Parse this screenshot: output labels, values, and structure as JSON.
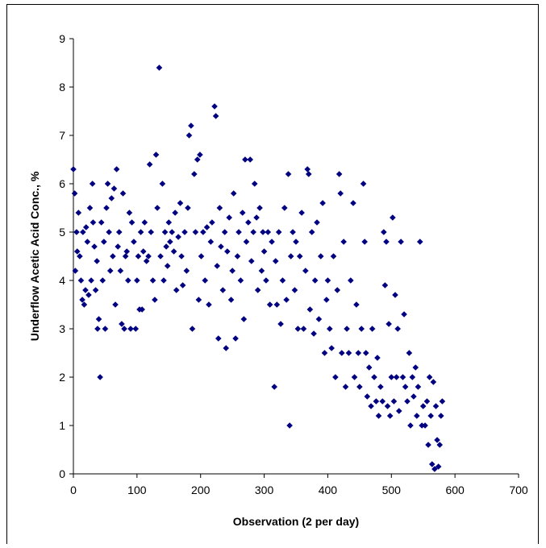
{
  "chart_data": {
    "type": "scatter",
    "x_label": "Observation (2 per day)",
    "y_label": "Underflow Acetic Acid Conc., %",
    "xlim": [
      0,
      700
    ],
    "xticks": [
      0,
      100,
      200,
      300,
      400,
      500,
      600,
      700
    ],
    "ylim": [
      0,
      9
    ],
    "yticks": [
      0,
      1,
      2,
      3,
      4,
      5,
      6,
      7,
      8,
      9
    ],
    "color": "#000080",
    "x": [
      0,
      2,
      3,
      5,
      6,
      8,
      10,
      12,
      14,
      15,
      17,
      19,
      20,
      22,
      24,
      26,
      28,
      30,
      31,
      33,
      35,
      37,
      38,
      40,
      42,
      44,
      46,
      48,
      50,
      52,
      54,
      56,
      58,
      60,
      62,
      64,
      66,
      68,
      70,
      72,
      74,
      76,
      78,
      80,
      82,
      84,
      86,
      88,
      90,
      92,
      95,
      98,
      100,
      102,
      104,
      106,
      108,
      110,
      112,
      115,
      118,
      120,
      122,
      125,
      128,
      130,
      132,
      135,
      137,
      140,
      142,
      144,
      146,
      148,
      150,
      152,
      155,
      158,
      160,
      162,
      165,
      168,
      170,
      172,
      175,
      178,
      180,
      182,
      185,
      187,
      190,
      192,
      195,
      197,
      199,
      201,
      204,
      207,
      210,
      213,
      216,
      218,
      222,
      224,
      226,
      228,
      230,
      232,
      235,
      238,
      240,
      242,
      245,
      248,
      250,
      252,
      255,
      258,
      260,
      263,
      266,
      268,
      270,
      272,
      275,
      278,
      280,
      283,
      285,
      288,
      290,
      293,
      296,
      298,
      300,
      303,
      306,
      309,
      312,
      316,
      318,
      320,
      323,
      326,
      329,
      332,
      335,
      338,
      340,
      342,
      345,
      348,
      350,
      353,
      356,
      359,
      362,
      365,
      368,
      370,
      372,
      375,
      378,
      380,
      383,
      386,
      389,
      392,
      395,
      398,
      400,
      403,
      406,
      409,
      412,
      415,
      418,
      420,
      422,
      425,
      428,
      430,
      433,
      436,
      440,
      442,
      445,
      448,
      450,
      453,
      456,
      458,
      460,
      462,
      465,
      468,
      470,
      473,
      476,
      478,
      480,
      483,
      486,
      488,
      490,
      492,
      494,
      496,
      498,
      500,
      502,
      504,
      506,
      508,
      510,
      512,
      515,
      518,
      520,
      522,
      525,
      528,
      530,
      533,
      535,
      538,
      540,
      542,
      545,
      548,
      550,
      553,
      556,
      558,
      560,
      562,
      564,
      566,
      568,
      570,
      572,
      574,
      576,
      578,
      580
    ],
    "values": [
      6.3,
      5.8,
      4.2,
      5.0,
      4.6,
      5.4,
      4.5,
      4.0,
      3.6,
      5.0,
      3.5,
      3.8,
      5.1,
      4.8,
      3.7,
      5.5,
      4.0,
      6.0,
      5.2,
      4.7,
      3.8,
      4.4,
      3.0,
      3.2,
      2.0,
      5.2,
      4.0,
      4.8,
      3.0,
      5.5,
      6.0,
      5.0,
      4.2,
      5.7,
      4.5,
      5.9,
      3.5,
      6.3,
      4.7,
      5.0,
      4.2,
      3.1,
      5.8,
      3.0,
      4.5,
      4.6,
      4.0,
      5.4,
      3.0,
      5.2,
      4.8,
      3.0,
      4.0,
      4.5,
      3.4,
      5.0,
      3.4,
      4.6,
      5.2,
      4.4,
      4.5,
      6.4,
      5.0,
      4.0,
      3.6,
      6.6,
      5.5,
      8.4,
      4.5,
      6.0,
      4.0,
      5.0,
      4.7,
      4.3,
      5.2,
      4.8,
      5.0,
      4.6,
      5.4,
      3.8,
      4.9,
      5.6,
      4.5,
      3.9,
      5.0,
      4.2,
      5.5,
      7.0,
      7.2,
      3.0,
      6.2,
      5.0,
      6.5,
      3.6,
      6.6,
      4.5,
      5.0,
      4.0,
      5.1,
      3.5,
      4.8,
      5.2,
      7.6,
      7.4,
      4.3,
      2.8,
      5.5,
      4.7,
      3.8,
      5.0,
      2.6,
      4.6,
      5.3,
      3.6,
      4.2,
      5.8,
      2.8,
      4.5,
      5.0,
      4.0,
      5.4,
      3.2,
      6.5,
      4.8,
      5.2,
      6.5,
      4.4,
      5.0,
      6.0,
      5.3,
      3.8,
      5.5,
      4.2,
      5.0,
      4.6,
      4.0,
      5.0,
      3.5,
      4.8,
      1.8,
      4.4,
      3.5,
      5.0,
      3.1,
      4.0,
      5.5,
      3.6,
      6.2,
      1.0,
      4.5,
      5.0,
      3.8,
      4.8,
      3.0,
      4.5,
      5.4,
      3.0,
      4.2,
      6.3,
      6.2,
      3.4,
      5.0,
      2.9,
      4.0,
      5.2,
      3.2,
      4.5,
      5.6,
      2.5,
      3.6,
      4.0,
      3.0,
      2.6,
      4.5,
      2.0,
      3.8,
      6.2,
      5.8,
      2.5,
      4.8,
      1.8,
      3.0,
      2.5,
      4.0,
      5.6,
      2.0,
      3.5,
      2.5,
      1.8,
      3.0,
      6.0,
      4.8,
      2.5,
      1.6,
      2.2,
      1.4,
      3.0,
      2.0,
      1.5,
      2.4,
      1.2,
      1.8,
      1.5,
      5.0,
      3.9,
      4.8,
      1.4,
      3.1,
      1.2,
      2.0,
      5.3,
      1.5,
      3.7,
      2.0,
      3.0,
      1.3,
      4.8,
      2.0,
      3.3,
      1.8,
      1.5,
      2.5,
      1.0,
      2.0,
      1.6,
      2.2,
      1.2,
      1.8,
      4.8,
      1.0,
      1.4,
      1.0,
      1.5,
      0.6,
      2.0,
      1.2,
      0.2,
      1.9,
      0.1,
      1.4,
      0.7,
      0.15,
      0.6,
      1.2,
      1.5
    ]
  }
}
